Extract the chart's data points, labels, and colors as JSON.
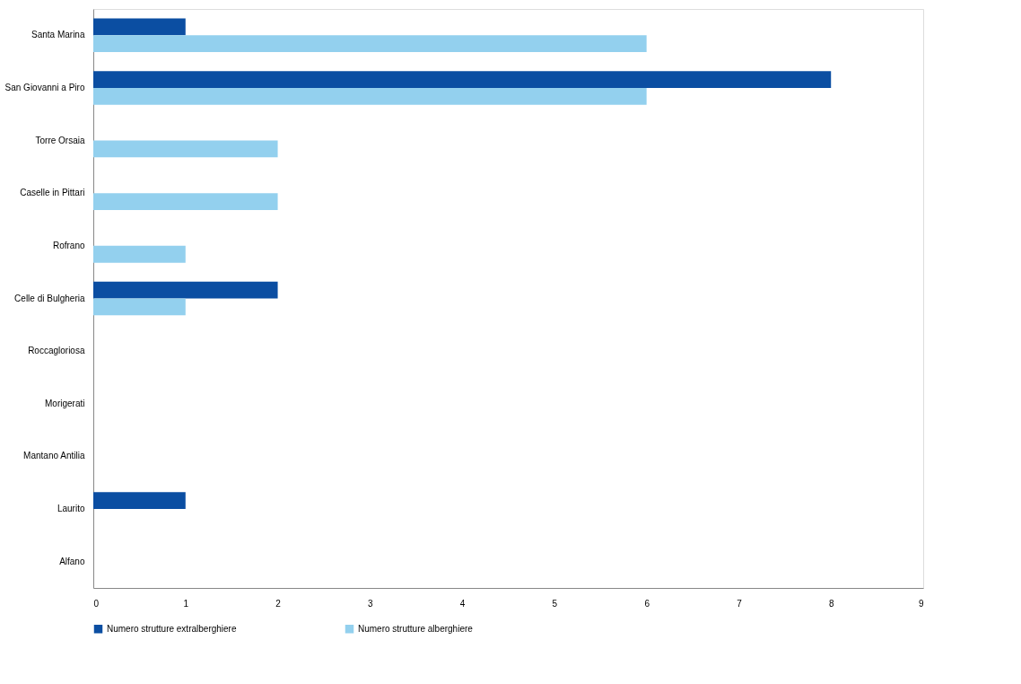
{
  "chart_data": {
    "type": "bar",
    "orientation": "horizontal",
    "categories": [
      "Santa Marina",
      "San Giovanni a Piro",
      "Torre Orsaia",
      "Caselle in Pittari",
      "Rofrano",
      "Celle di Bulgheria",
      "Roccagloriosa",
      "Morigerati",
      "Mantano Antilia",
      "Laurito",
      "Alfano"
    ],
    "series": [
      {
        "name": "Numero strutture extralberghiere",
        "color": "#0b4ea2",
        "values": [
          1,
          8,
          0,
          0,
          0,
          2,
          0,
          0,
          0,
          1,
          0
        ]
      },
      {
        "name": "Numero strutture alberghiere",
        "color": "#93d0ee",
        "values": [
          6,
          6,
          2,
          2,
          1,
          1,
          0,
          0,
          0,
          0,
          0
        ]
      }
    ],
    "xlim": [
      0,
      9
    ],
    "xticks": [
      0,
      1,
      2,
      3,
      4,
      5,
      6,
      7,
      8,
      9
    ],
    "grid": false,
    "legend": "bottom"
  }
}
